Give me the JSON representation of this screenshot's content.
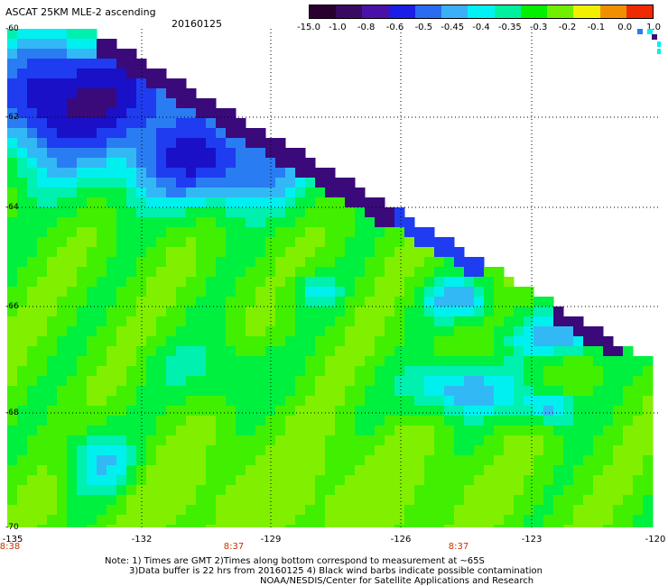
{
  "header": {
    "product": "ASCAT 25KM MLE-2 ascending",
    "date": "20160125"
  },
  "colorbar": {
    "labels": [
      "-15.0",
      "-1.0",
      "-0.8",
      "-0.6",
      "-0.5",
      "-0.45",
      "-0.4",
      "-0.35",
      "-0.3",
      "-0.2",
      "-0.1",
      "0.0",
      "1.0"
    ],
    "colors": [
      "#2a0030",
      "#3a0a60",
      "#4b10a8",
      "#1a1ee6",
      "#2a6cf0",
      "#3ab0f8",
      "#00f2f2",
      "#00f0a0",
      "#00f000",
      "#70f000",
      "#f0f000",
      "#f09000",
      "#f02a00"
    ]
  },
  "axes": {
    "lat_labels": [
      "-60",
      "-62",
      "-64",
      "-66",
      "-68",
      "-70"
    ],
    "lon_labels": [
      "-135",
      "-132",
      "-129",
      "-126",
      "-123",
      "-120"
    ],
    "time_labels": [
      "8:38",
      "8:37",
      "8:37"
    ]
  },
  "map": {
    "lat_range": [
      -70,
      -60
    ],
    "lon_range": [
      -135,
      -120
    ],
    "grid": true,
    "gridlines_lat": [
      -62,
      -64,
      -66,
      -68
    ],
    "gridlines_lon": [
      -132,
      -129,
      -126,
      -123
    ],
    "field": "MLE-2"
  },
  "notes": {
    "line1": "Note: 1) Times are GMT 2)Times along bottom correspond to measurement at ~65S",
    "line2": "3)Data buffer is 22 hrs from 20160125 4) Black wind barbs indicate possible contamination",
    "line3": "NOAA/NESDIS/Center for Satellite Applications and Research"
  }
}
